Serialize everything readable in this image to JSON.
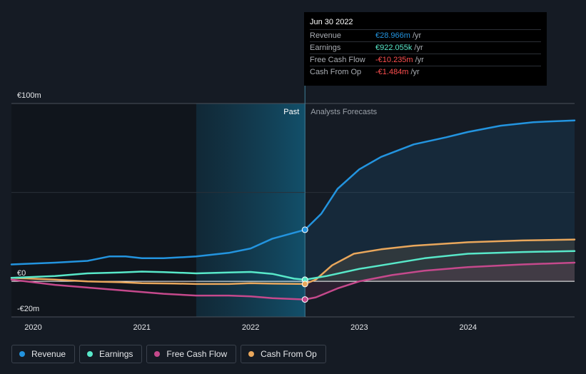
{
  "tooltip": {
    "date": "Jun 30 2022",
    "rows": [
      {
        "label": "Revenue",
        "value": "€28.966m",
        "unit": "/yr",
        "color": "#2394df"
      },
      {
        "label": "Earnings",
        "value": "€922.055k",
        "unit": "/yr",
        "color": "#58e8c9"
      },
      {
        "label": "Free Cash Flow",
        "value": "-€10.235m",
        "unit": "/yr",
        "color": "#ff4f4f"
      },
      {
        "label": "Cash From Op",
        "value": "-€1.484m",
        "unit": "/yr",
        "color": "#ff4f4f"
      }
    ]
  },
  "legend": [
    {
      "label": "Revenue",
      "color": "#2394df"
    },
    {
      "label": "Earnings",
      "color": "#58e8c9"
    },
    {
      "label": "Free Cash Flow",
      "color": "#c5498c"
    },
    {
      "label": "Cash From Op",
      "color": "#e9a75c"
    }
  ],
  "chart_data": {
    "type": "line",
    "currency_unit": "€m",
    "ylim": [
      -20,
      100
    ],
    "y_tick_labels": [
      {
        "value": 100,
        "label": "€100m"
      },
      {
        "value": 0,
        "label": "€0"
      },
      {
        "value": -20,
        "label": "-€20m"
      }
    ],
    "x_ticks": [
      {
        "value": 2020.0,
        "label": "2020"
      },
      {
        "value": 2021.0,
        "label": "2021"
      },
      {
        "value": 2022.0,
        "label": "2022"
      },
      {
        "value": 2023.0,
        "label": "2023"
      },
      {
        "value": 2024.0,
        "label": "2024"
      }
    ],
    "xlim": [
      2019.8,
      2024.98
    ],
    "past_label": "Past",
    "forecast_label": "Analysts Forecasts",
    "divider_x": 2022.5,
    "highlight_start": 2021.5,
    "series": [
      {
        "name": "Revenue",
        "color": "#2394df",
        "forecast_fill": true,
        "points": [
          [
            2019.8,
            9.5
          ],
          [
            2020.2,
            10.5
          ],
          [
            2020.5,
            11.5
          ],
          [
            2020.7,
            14
          ],
          [
            2020.85,
            14
          ],
          [
            2021.0,
            13
          ],
          [
            2021.2,
            13
          ],
          [
            2021.5,
            14
          ],
          [
            2021.8,
            16
          ],
          [
            2022.0,
            18.5
          ],
          [
            2022.2,
            24
          ],
          [
            2022.5,
            29
          ],
          [
            2022.65,
            38
          ],
          [
            2022.8,
            52
          ],
          [
            2023.0,
            63
          ],
          [
            2023.2,
            70
          ],
          [
            2023.5,
            77
          ],
          [
            2023.8,
            81
          ],
          [
            2024.0,
            84
          ],
          [
            2024.3,
            87.5
          ],
          [
            2024.6,
            89.5
          ],
          [
            2024.98,
            90.5
          ]
        ],
        "marker": [
          2022.5,
          29
        ]
      },
      {
        "name": "Earnings",
        "color": "#58e8c9",
        "forecast_fill": false,
        "points": [
          [
            2019.8,
            2
          ],
          [
            2020.2,
            3
          ],
          [
            2020.5,
            4.5
          ],
          [
            2020.8,
            5
          ],
          [
            2021.0,
            5.5
          ],
          [
            2021.2,
            5.2
          ],
          [
            2021.5,
            4.5
          ],
          [
            2021.8,
            5
          ],
          [
            2022.0,
            5.3
          ],
          [
            2022.2,
            4.2
          ],
          [
            2022.4,
            1.5
          ],
          [
            2022.5,
            0.9
          ],
          [
            2022.7,
            3
          ],
          [
            2023.0,
            7
          ],
          [
            2023.3,
            10
          ],
          [
            2023.6,
            13
          ],
          [
            2024.0,
            15.5
          ],
          [
            2024.5,
            16.5
          ],
          [
            2024.98,
            17
          ]
        ],
        "marker": [
          2022.5,
          0.9
        ]
      },
      {
        "name": "Free Cash Flow",
        "color": "#c5498c",
        "forecast_fill": true,
        "points": [
          [
            2019.8,
            1
          ],
          [
            2020.2,
            -2
          ],
          [
            2020.5,
            -3.5
          ],
          [
            2020.8,
            -5
          ],
          [
            2021.0,
            -6
          ],
          [
            2021.2,
            -7
          ],
          [
            2021.5,
            -8
          ],
          [
            2021.8,
            -8
          ],
          [
            2022.0,
            -8.5
          ],
          [
            2022.2,
            -9.5
          ],
          [
            2022.5,
            -10.2
          ],
          [
            2022.6,
            -9
          ],
          [
            2022.8,
            -4
          ],
          [
            2023.0,
            0
          ],
          [
            2023.3,
            3.5
          ],
          [
            2023.6,
            6
          ],
          [
            2024.0,
            8
          ],
          [
            2024.5,
            9.5
          ],
          [
            2024.98,
            10.5
          ]
        ],
        "marker": [
          2022.5,
          -10.2
        ]
      },
      {
        "name": "Cash From Op",
        "color": "#e9a75c",
        "forecast_fill": true,
        "points": [
          [
            2019.8,
            2
          ],
          [
            2020.2,
            1
          ],
          [
            2020.5,
            0
          ],
          [
            2020.8,
            -0.5
          ],
          [
            2021.0,
            -1
          ],
          [
            2021.3,
            -1.2
          ],
          [
            2021.5,
            -1.5
          ],
          [
            2021.8,
            -1.5
          ],
          [
            2022.0,
            -1
          ],
          [
            2022.2,
            -1.3
          ],
          [
            2022.5,
            -1.5
          ],
          [
            2022.6,
            1
          ],
          [
            2022.75,
            9
          ],
          [
            2022.95,
            15.5
          ],
          [
            2023.2,
            18
          ],
          [
            2023.5,
            20
          ],
          [
            2024.0,
            22
          ],
          [
            2024.5,
            23
          ],
          [
            2024.98,
            23.5
          ]
        ],
        "marker": [
          2022.5,
          -1.5
        ]
      }
    ]
  }
}
